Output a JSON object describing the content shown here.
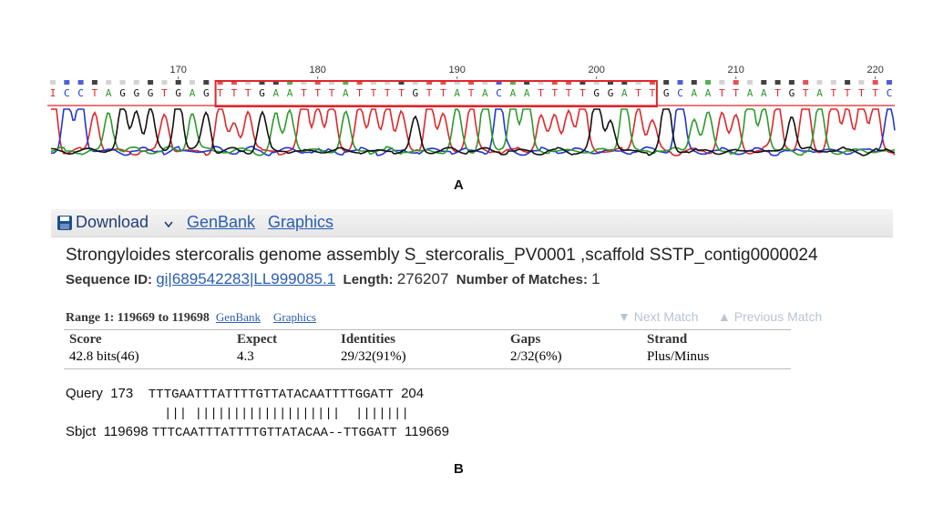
{
  "panel_a": {
    "label": "A",
    "ticks": [
      170,
      180,
      190,
      200,
      210,
      220
    ],
    "first_position": 161,
    "bases": [
      "I",
      "C",
      "C",
      "T",
      "A",
      "G",
      "G",
      "G",
      "T",
      "G",
      "A",
      "G",
      "T",
      "T",
      "T",
      "G",
      "A",
      "A",
      "T",
      "T",
      "T",
      "A",
      "T",
      "T",
      "T",
      "T",
      "G",
      "T",
      "T",
      "A",
      "T",
      "A",
      "C",
      "A",
      "A",
      "T",
      "T",
      "T",
      "T",
      "G",
      "G",
      "A",
      "T",
      "T",
      "G",
      "C",
      "A",
      "A",
      "T",
      "T",
      "A",
      "A",
      "T",
      "G",
      "T",
      "A",
      "T",
      "T",
      "T",
      "T",
      "C"
    ],
    "box": [
      173,
      204
    ],
    "colors": {
      "A": "#2b9a2b",
      "C": "#2336d0",
      "G": "#111111",
      "T": "#e0262a",
      "I": "#e0262a"
    }
  },
  "panel_b": {
    "label": "B",
    "toolbar": [
      "Download",
      "GenBank",
      "Graphics"
    ],
    "title": "Strongyloides stercoralis genome assembly S_stercoralis_PV0001 ,scaffold SSTP_contig0000024",
    "sequence_id_label": "Sequence ID:",
    "sequence_id": "gi|689542283|LL999085.1",
    "length_label": "Length:",
    "length": 276207,
    "matches_label": "Number of Matches:",
    "matches": 1,
    "range": "Range 1: 119669 to 119698",
    "range_links": [
      "GenBank",
      "Graphics"
    ],
    "nav": [
      "Next Match",
      "Previous Match"
    ],
    "table": {
      "headers": [
        "Score",
        "Expect",
        "Identities",
        "Gaps",
        "Strand"
      ],
      "row": [
        "42.8 bits(46)",
        "4.3",
        "29/32(91%)",
        "2/32(6%)",
        "Plus/Minus"
      ]
    },
    "alignment": {
      "query_label": "Query",
      "query_start": 173,
      "query_seq": "TTTGAATTTATTTTGTTATACAATTTTGGATT",
      "query_end": 204,
      "midline": "||| |||||||||||||||||||  |||||||",
      "sbjct_label": "Sbjct",
      "sbjct_start": 119698,
      "sbjct_seq": "TTTCAATTTATTTTGTTATACAA--TTGGATT",
      "sbjct_end": 119669
    }
  }
}
